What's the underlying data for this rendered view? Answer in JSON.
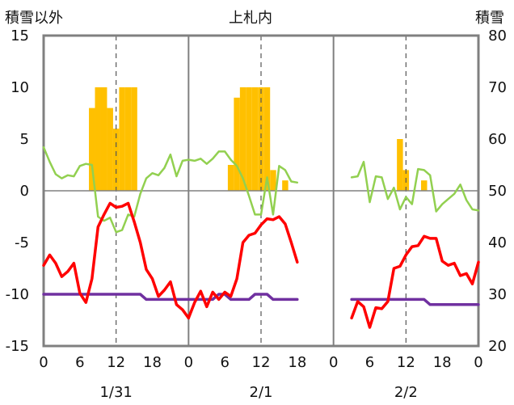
{
  "chart_data": {
    "type": "combo",
    "title": "上札内",
    "y_left_label": "積雪以外",
    "y_right_label": "積雪",
    "y_left_range": [
      -15,
      15
    ],
    "y_left_ticks": [
      "15",
      "10",
      "5",
      "0",
      "-5",
      "-10",
      "-15"
    ],
    "y_right_range": [
      20,
      80
    ],
    "y_right_ticks": [
      "80",
      "70",
      "60",
      "50",
      "40",
      "30",
      "20"
    ],
    "x_tick_labels": [
      "0",
      "6",
      "12",
      "18",
      "0",
      "6",
      "12",
      "18",
      "0",
      "6",
      "12",
      "18",
      "0"
    ],
    "day_labels": [
      "1/31",
      "2/1",
      "2/2"
    ],
    "colors": {
      "snow_bars": "#FFC000",
      "green_line": "#92D050",
      "red_line": "#FF0000",
      "purple_line": "#7030A0",
      "axis": "#808080"
    },
    "panels": [
      {
        "day": "1/31",
        "snow_depth_bars": {
          "hours": [
            8,
            9,
            10,
            11,
            12,
            13,
            14,
            15
          ],
          "values": [
            66,
            70,
            70,
            66,
            62,
            70,
            70,
            70
          ]
        },
        "green_line": {
          "hours": [
            0,
            1,
            2,
            3,
            4,
            5,
            6,
            7,
            8,
            9,
            10,
            11,
            12,
            13,
            14,
            15,
            16,
            17,
            18,
            19,
            20,
            21,
            22,
            23,
            24
          ],
          "values": [
            4.2,
            2.8,
            1.6,
            1.2,
            1.5,
            1.4,
            2.4,
            2.6,
            2.5,
            -2.5,
            -2.9,
            -2.6,
            -4,
            -3.8,
            -2.3,
            -2.5,
            -0.3,
            1.2,
            1.7,
            1.5,
            2.2,
            3.5,
            1.4,
            2.9,
            3.0
          ]
        },
        "red_line": {
          "hours": [
            0,
            1,
            2,
            3,
            4,
            5,
            6,
            7,
            8,
            9,
            10,
            11,
            12,
            13,
            14,
            15,
            16,
            17,
            18,
            19,
            20,
            21,
            22,
            23,
            24
          ],
          "values": [
            -7.2,
            -6.2,
            -7,
            -8.3,
            -7.8,
            -7,
            -9.9,
            -10.8,
            -8.5,
            -3.5,
            -2.3,
            -1.2,
            -1.6,
            -1.5,
            -1.2,
            -3,
            -5,
            -7.6,
            -8.5,
            -10.2,
            -9.6,
            -8.8,
            -11,
            -11.5,
            -12.3
          ]
        },
        "purple_line": {
          "hours": [
            0,
            1,
            2,
            3,
            4,
            5,
            6,
            7,
            8,
            9,
            10,
            11,
            12,
            13,
            14,
            15,
            16,
            17,
            18,
            19,
            20,
            21,
            22,
            23,
            24
          ],
          "values": [
            -10,
            -10,
            -10,
            -10,
            -10,
            -10,
            -10,
            -10,
            -10,
            -10,
            -10,
            -10,
            -10,
            -10,
            -10,
            -10,
            -10,
            -10.5,
            -10.5,
            -10.5,
            -10.5,
            -10.5,
            -10.5,
            -10.5,
            -10.5
          ]
        }
      },
      {
        "day": "2/1",
        "snow_depth_bars": {
          "hours": [
            7,
            8,
            9,
            10,
            11,
            12,
            13,
            14,
            16
          ],
          "values": [
            55,
            68,
            70,
            70,
            70,
            70,
            70,
            54,
            52
          ]
        },
        "green_line": {
          "hours": [
            0,
            1,
            2,
            3,
            4,
            5,
            6,
            7,
            8,
            9,
            10,
            11,
            12,
            13,
            14,
            15,
            16,
            17,
            18
          ],
          "values": [
            3,
            2.9,
            3.1,
            2.6,
            3.1,
            3.8,
            3.8,
            3,
            2.4,
            1.2,
            -0.5,
            -2.3,
            -2.3,
            1.3,
            -2.3,
            2.4,
            2,
            0.9,
            0.8
          ]
        },
        "red_line": {
          "hours": [
            0,
            1,
            2,
            3,
            4,
            5,
            6,
            7,
            8,
            9,
            10,
            11,
            12,
            13,
            14,
            15,
            16,
            17,
            18
          ],
          "values": [
            -12.3,
            -10.8,
            -9.7,
            -11.2,
            -9.8,
            -10.5,
            -9.8,
            -10.2,
            -8.5,
            -5,
            -4.3,
            -4.1,
            -3.3,
            -2.7,
            -2.8,
            -2.5,
            -3.2,
            -5,
            -6.9
          ]
        },
        "purple_line": {
          "hours": [
            0,
            1,
            2,
            3,
            4,
            5,
            6,
            7,
            8,
            9,
            10,
            11,
            12,
            13,
            14,
            15,
            16,
            17,
            18
          ],
          "values": [
            -10.5,
            -10.5,
            -10.5,
            -10.5,
            -10.5,
            -10,
            -10,
            -10.5,
            -10.5,
            -10.5,
            -10.5,
            -10,
            -10,
            -10,
            -10.5,
            -10.5,
            -10.5,
            -10.5,
            -10.5
          ]
        }
      },
      {
        "day": "2/2",
        "snow_depth_bars": {
          "hours": [
            11,
            12,
            15
          ],
          "values": [
            60,
            54,
            52
          ]
        },
        "green_line": {
          "hours": [
            3,
            4,
            5,
            6,
            7,
            8,
            9,
            10,
            11,
            12,
            13,
            14,
            15,
            16,
            17,
            18,
            19,
            20,
            21,
            22,
            23,
            24
          ],
          "values": [
            1.3,
            1.4,
            2.8,
            -1.1,
            1.4,
            1.3,
            -0.8,
            0.3,
            -1.8,
            -0.6,
            -1.3,
            2.1,
            2,
            1.5,
            -2,
            -1.3,
            -0.8,
            -0.3,
            0.6,
            -0.9,
            -1.8,
            -1.9
          ]
        },
        "red_line": {
          "hours": [
            3,
            4,
            5,
            6,
            7,
            8,
            9,
            10,
            11,
            12,
            13,
            14,
            15,
            16,
            17,
            18,
            19,
            20,
            21,
            22,
            23,
            24
          ],
          "values": [
            -12.3,
            -10.7,
            -11.2,
            -13.2,
            -11.3,
            -11.4,
            -10.7,
            -7.5,
            -7.3,
            -6.2,
            -5.4,
            -5.3,
            -4.4,
            -4.6,
            -4.6,
            -6.8,
            -7.2,
            -7,
            -8.2,
            -8,
            -9,
            -6.9
          ]
        },
        "purple_line": {
          "hours": [
            3,
            4,
            5,
            6,
            7,
            8,
            9,
            10,
            11,
            12,
            13,
            14,
            15,
            16,
            17,
            18,
            19,
            20,
            21,
            22,
            23,
            24
          ],
          "values": [
            -10.5,
            -10.5,
            -10.5,
            -10.5,
            -10.5,
            -10.5,
            -10.5,
            -10.5,
            -10.5,
            -10.5,
            -10.5,
            -10.5,
            -10.5,
            -11,
            -11,
            -11,
            -11,
            -11,
            -11,
            -11,
            -11,
            -11
          ]
        }
      }
    ]
  }
}
